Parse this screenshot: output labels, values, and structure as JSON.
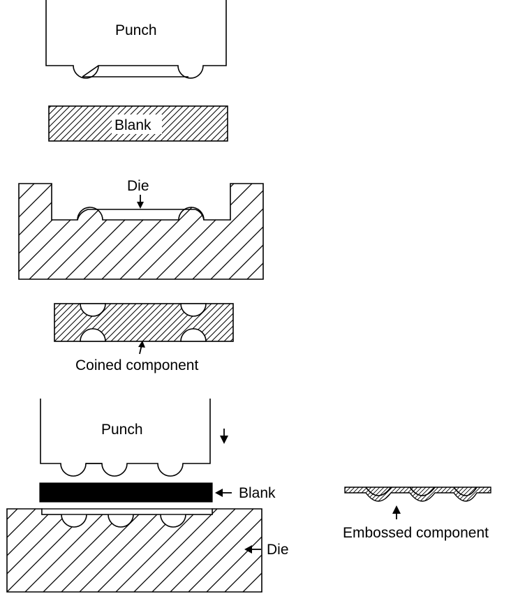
{
  "labels": {
    "punch_top": "Punch",
    "blank_top": "Blank",
    "die_top": "Die",
    "coined": "Coined component",
    "punch_bottom": "Punch",
    "blank_bottom": "Blank",
    "die_bottom": "Die",
    "embossed": "Embossed component"
  },
  "colors": {
    "ink": "#000000",
    "paper": "#ffffff"
  }
}
